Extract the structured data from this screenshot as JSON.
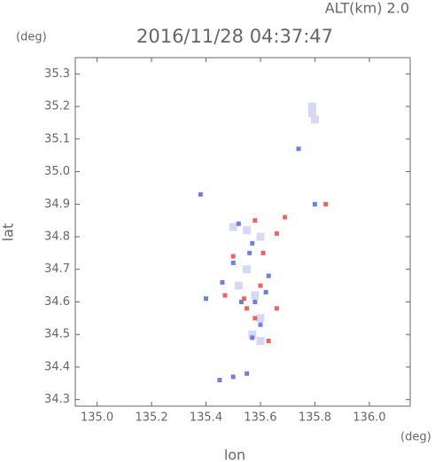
{
  "chart_data": {
    "type": "scatter",
    "title": "2016/11/28 04:37:47",
    "subtitle": "ALT(km) 2.0",
    "x_unit": "(deg)",
    "y_unit": "(deg)",
    "x_label": "lon",
    "y_label": "lat",
    "xlim": [
      134.92,
      136.15
    ],
    "ylim": [
      34.28,
      35.35
    ],
    "xticks": [
      {
        "value": 135,
        "label": "135.0"
      },
      135.2,
      135.4,
      135.6,
      135.8,
      {
        "value": 136,
        "label": "136.0"
      }
    ],
    "yticks": [
      34.3,
      34.4,
      34.5,
      34.6,
      34.7,
      34.8,
      34.9,
      {
        "value": 35,
        "label": "35.0"
      },
      35.1,
      35.2,
      35.3
    ],
    "series": [
      {
        "color": "#d6d8f4",
        "x": [
          135.79,
          135.79,
          135.8,
          135.55,
          135.52,
          135.58,
          135.6,
          135.57,
          135.6,
          135.55,
          135.6,
          135.5
        ],
        "values": [
          35.18,
          35.2,
          35.16,
          34.7,
          34.65,
          34.62,
          34.55,
          34.5,
          34.48,
          34.82,
          34.8,
          34.83
        ]
      },
      {
        "color": "#6f7fe0",
        "x": [
          135.53,
          135.58,
          135.62,
          135.5,
          135.56,
          135.6,
          135.57,
          135.45,
          135.5,
          135.55,
          135.4,
          135.46,
          135.52,
          135.57,
          135.74,
          135.38,
          135.8,
          135.63
        ],
        "values": [
          34.6,
          34.6,
          34.63,
          34.72,
          34.75,
          34.53,
          34.49,
          34.36,
          34.37,
          34.38,
          34.61,
          34.66,
          34.84,
          34.78,
          35.07,
          34.93,
          34.9,
          34.68
        ]
      },
      {
        "color": "#f06262",
        "x": [
          135.55,
          135.6,
          135.63,
          135.66,
          135.5,
          135.58,
          135.66,
          135.84,
          135.69,
          135.54,
          135.58,
          135.61,
          135.47
        ],
        "values": [
          34.58,
          34.65,
          34.48,
          34.58,
          34.74,
          34.85,
          34.81,
          34.9,
          34.86,
          34.61,
          34.55,
          34.75,
          34.62
        ]
      }
    ]
  }
}
